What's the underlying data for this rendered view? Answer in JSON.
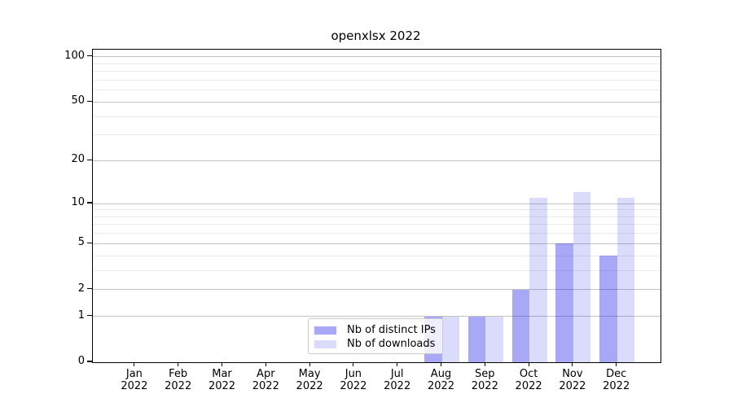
{
  "title": "openxlsx 2022",
  "chart_data": {
    "type": "bar",
    "title": "openxlsx 2022",
    "categories": [
      "Jan",
      "Feb",
      "Mar",
      "Apr",
      "May",
      "Jun",
      "Jul",
      "Aug",
      "Sep",
      "Oct",
      "Nov",
      "Dec"
    ],
    "year": "2022",
    "series": [
      {
        "name": "Nb of distinct IPs",
        "color": "rgba(0,0,230,0.34)",
        "values": [
          0,
          0,
          0,
          0,
          0,
          0,
          0,
          1,
          1,
          2,
          5,
          4
        ]
      },
      {
        "name": "Nb of downloads",
        "color": "rgba(0,0,230,0.14)",
        "values": [
          0,
          0,
          0,
          0,
          0,
          0,
          0,
          1,
          1,
          11,
          12,
          11
        ]
      }
    ],
    "xlabel": "",
    "ylabel": "",
    "y_scale": "log1p",
    "y_tick_values": [
      0,
      1,
      2,
      5,
      10,
      20,
      50,
      100
    ],
    "y_minor_gridline_values": [
      3,
      4,
      6,
      7,
      8,
      9,
      30,
      40,
      60,
      70,
      80,
      90
    ],
    "ylim": [
      0,
      115
    ],
    "grid": true,
    "legend_position": "bottom-center-inside",
    "legend_entries": [
      "Nb of distinct IPs",
      "Nb of downloads"
    ]
  },
  "colors": {
    "bar_dark": "rgba(0,0,230,0.34)",
    "bar_light": "rgba(0,0,230,0.14)",
    "grid_major": "#c4c4c4",
    "grid_minor": "#ebebeb",
    "axis": "#000000",
    "legend_border": "#cccccc"
  }
}
